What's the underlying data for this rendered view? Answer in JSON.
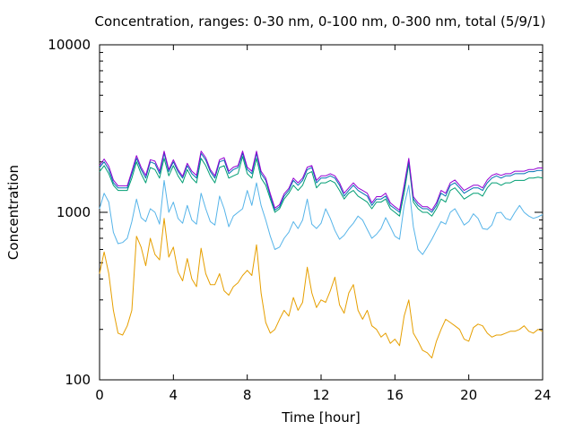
{
  "chart_data": {
    "type": "line",
    "title": "Concentration, ranges: 0-30 nm, 0-100 nm, 0-300 nm, total (5/9/1)",
    "xlabel": "Time [hour]",
    "ylabel": "Concentration",
    "xlim": [
      0,
      24
    ],
    "ylim": [
      100,
      10000
    ],
    "yscale": "log",
    "xticks": [
      0,
      4,
      8,
      12,
      16,
      20,
      24
    ],
    "xtick_labels": [
      "0",
      "4",
      "8",
      "12",
      "16",
      "20",
      "24"
    ],
    "yticks": [
      100,
      1000,
      10000
    ],
    "ytick_labels": [
      "100",
      "1000",
      "10000"
    ],
    "grid": false,
    "x": [
      0.0,
      0.25,
      0.5,
      0.75,
      1.0,
      1.25,
      1.5,
      1.75,
      2.0,
      2.25,
      2.5,
      2.75,
      3.0,
      3.25,
      3.5,
      3.75,
      4.0,
      4.25,
      4.5,
      4.75,
      5.0,
      5.25,
      5.5,
      5.75,
      6.0,
      6.25,
      6.5,
      6.75,
      7.0,
      7.25,
      7.5,
      7.75,
      8.0,
      8.25,
      8.5,
      8.75,
      9.0,
      9.25,
      9.5,
      9.75,
      10.0,
      10.25,
      10.5,
      10.75,
      11.0,
      11.25,
      11.5,
      11.75,
      12.0,
      12.25,
      12.5,
      12.75,
      13.0,
      13.25,
      13.5,
      13.75,
      14.0,
      14.25,
      14.5,
      14.75,
      15.0,
      15.25,
      15.5,
      15.75,
      16.0,
      16.25,
      16.5,
      16.75,
      17.0,
      17.25,
      17.5,
      17.75,
      18.0,
      18.25,
      18.5,
      18.75,
      19.0,
      19.25,
      19.5,
      19.75,
      20.0,
      20.25,
      20.5,
      20.75,
      21.0,
      21.25,
      21.5,
      21.75,
      22.0,
      22.25,
      22.5,
      22.75,
      23.0,
      23.25,
      23.5,
      23.75,
      24.0
    ],
    "series": [
      {
        "color": "#e69f00",
        "values": [
          430,
          580,
          430,
          260,
          190,
          185,
          210,
          260,
          720,
          620,
          480,
          700,
          560,
          520,
          920,
          540,
          620,
          440,
          390,
          530,
          400,
          360,
          610,
          430,
          370,
          370,
          430,
          340,
          320,
          360,
          380,
          420,
          450,
          420,
          640,
          330,
          220,
          190,
          200,
          230,
          260,
          240,
          310,
          260,
          290,
          470,
          330,
          270,
          300,
          290,
          340,
          410,
          280,
          250,
          330,
          370,
          260,
          230,
          260,
          210,
          200,
          180,
          190,
          165,
          175,
          160,
          240,
          300,
          190,
          170,
          150,
          145,
          135,
          170,
          200,
          230,
          220,
          210,
          200,
          175,
          170,
          205,
          215,
          210,
          190,
          180,
          185,
          185,
          190,
          195,
          195,
          200,
          210,
          195,
          190,
          200,
          195
        ]
      },
      {
        "color": "#56b4e9",
        "values": [
          1050,
          1300,
          1150,
          760,
          650,
          660,
          700,
          880,
          1200,
          930,
          880,
          1050,
          1000,
          850,
          1550,
          1000,
          1150,
          920,
          860,
          1100,
          900,
          850,
          1300,
          1050,
          880,
          840,
          1250,
          1050,
          820,
          950,
          1000,
          1050,
          1350,
          1100,
          1500,
          1100,
          900,
          720,
          600,
          620,
          700,
          760,
          880,
          800,
          900,
          1200,
          850,
          800,
          860,
          1050,
          920,
          780,
          690,
          730,
          800,
          860,
          950,
          900,
          790,
          700,
          740,
          800,
          930,
          820,
          720,
          690,
          1100,
          1450,
          820,
          600,
          560,
          620,
          690,
          780,
          880,
          850,
          1000,
          1050,
          940,
          840,
          880,
          980,
          920,
          800,
          790,
          840,
          990,
          1000,
          920,
          900,
          1000,
          1100,
          1000,
          950,
          920,
          940,
          970
        ]
      },
      {
        "color": "#009e73",
        "values": [
          1750,
          1900,
          1700,
          1450,
          1350,
          1350,
          1350,
          1600,
          2000,
          1700,
          1500,
          1850,
          1800,
          1600,
          2100,
          1650,
          1900,
          1650,
          1500,
          1800,
          1600,
          1500,
          2100,
          1900,
          1650,
          1500,
          1850,
          1900,
          1600,
          1650,
          1700,
          2150,
          1700,
          1600,
          2100,
          1600,
          1450,
          1200,
          1000,
          1050,
          1200,
          1300,
          1450,
          1350,
          1450,
          1700,
          1750,
          1400,
          1500,
          1500,
          1550,
          1500,
          1350,
          1200,
          1300,
          1350,
          1250,
          1200,
          1150,
          1050,
          1150,
          1150,
          1200,
          1050,
          1000,
          950,
          1300,
          1950,
          1150,
          1050,
          1000,
          1000,
          950,
          1050,
          1200,
          1150,
          1350,
          1400,
          1300,
          1200,
          1250,
          1300,
          1300,
          1250,
          1400,
          1500,
          1500,
          1450,
          1500,
          1500,
          1550,
          1550,
          1550,
          1600,
          1600,
          1620,
          1600
        ]
      },
      {
        "color": "#0072b2",
        "values": [
          1850,
          2000,
          1800,
          1500,
          1400,
          1400,
          1400,
          1700,
          2100,
          1800,
          1600,
          2000,
          1950,
          1700,
          2250,
          1750,
          2000,
          1750,
          1600,
          1900,
          1700,
          1600,
          2250,
          2050,
          1750,
          1600,
          2000,
          2050,
          1700,
          1800,
          1850,
          2250,
          1800,
          1700,
          2250,
          1700,
          1550,
          1250,
          1030,
          1080,
          1250,
          1350,
          1550,
          1450,
          1550,
          1800,
          1850,
          1500,
          1600,
          1600,
          1650,
          1600,
          1450,
          1250,
          1350,
          1450,
          1350,
          1300,
          1250,
          1100,
          1200,
          1200,
          1250,
          1100,
          1050,
          1000,
          1400,
          2050,
          1200,
          1100,
          1050,
          1050,
          1000,
          1100,
          1300,
          1250,
          1450,
          1500,
          1400,
          1300,
          1350,
          1400,
          1400,
          1350,
          1500,
          1600,
          1650,
          1600,
          1650,
          1650,
          1700,
          1700,
          1700,
          1750,
          1750,
          1780,
          1780
        ]
      },
      {
        "color": "#9400d3",
        "values": [
          1900,
          2080,
          1880,
          1560,
          1440,
          1440,
          1440,
          1760,
          2180,
          1860,
          1660,
          2060,
          2020,
          1760,
          2320,
          1800,
          2060,
          1800,
          1640,
          1960,
          1760,
          1660,
          2320,
          2120,
          1800,
          1650,
          2060,
          2120,
          1760,
          1860,
          1900,
          2320,
          1860,
          1760,
          2320,
          1760,
          1600,
          1290,
          1060,
          1110,
          1290,
          1390,
          1600,
          1500,
          1600,
          1860,
          1900,
          1550,
          1650,
          1650,
          1700,
          1650,
          1500,
          1300,
          1400,
          1500,
          1400,
          1350,
          1300,
          1140,
          1240,
          1240,
          1300,
          1140,
          1080,
          1030,
          1450,
          2100,
          1240,
          1140,
          1080,
          1080,
          1030,
          1140,
          1350,
          1300,
          1500,
          1560,
          1450,
          1350,
          1400,
          1450,
          1450,
          1400,
          1560,
          1660,
          1700,
          1660,
          1700,
          1700,
          1760,
          1760,
          1760,
          1800,
          1800,
          1840,
          1840
        ]
      }
    ]
  }
}
